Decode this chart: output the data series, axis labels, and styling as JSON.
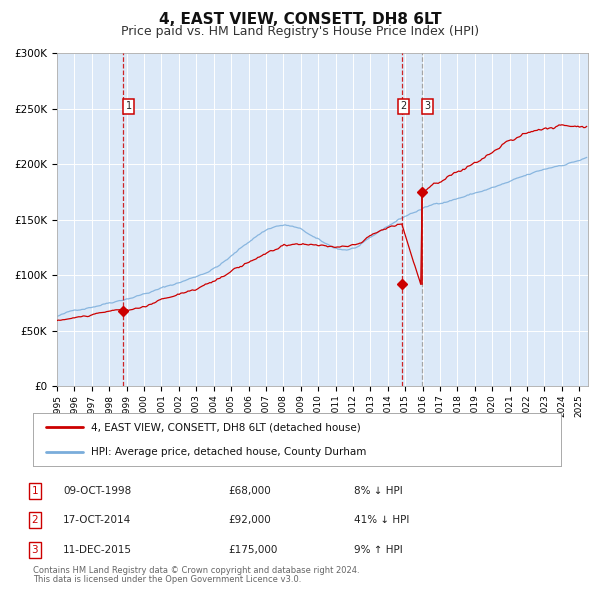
{
  "title": "4, EAST VIEW, CONSETT, DH8 6LT",
  "subtitle": "Price paid vs. HM Land Registry's House Price Index (HPI)",
  "title_fontsize": 11,
  "subtitle_fontsize": 9,
  "red_line_label": "4, EAST VIEW, CONSETT, DH8 6LT (detached house)",
  "blue_line_label": "HPI: Average price, detached house, County Durham",
  "t1_x": 1998.78,
  "t1_y": 68000,
  "t2_x": 2014.79,
  "t2_y": 92000,
  "t3_x": 2015.95,
  "t3_y": 175000,
  "table_rows": [
    {
      "num": "1",
      "date": "09-OCT-1998",
      "price": "£68,000",
      "change": "8% ↓ HPI"
    },
    {
      "num": "2",
      "date": "17-OCT-2014",
      "price": "£92,000",
      "change": "41% ↓ HPI"
    },
    {
      "num": "3",
      "date": "11-DEC-2015",
      "price": "£175,000",
      "change": "9% ↑ HPI"
    }
  ],
  "footnote1": "Contains HM Land Registry data © Crown copyright and database right 2024.",
  "footnote2": "This data is licensed under the Open Government Licence v3.0.",
  "bg_color": "#dce9f8",
  "fig_bg_color": "#ffffff",
  "red_color": "#cc0000",
  "blue_color": "#7aaddb",
  "ylim_min": 0,
  "ylim_max": 300000,
  "yticks": [
    0,
    50000,
    100000,
    150000,
    200000,
    250000,
    300000
  ],
  "xmin": 1995.0,
  "xmax": 2025.5
}
